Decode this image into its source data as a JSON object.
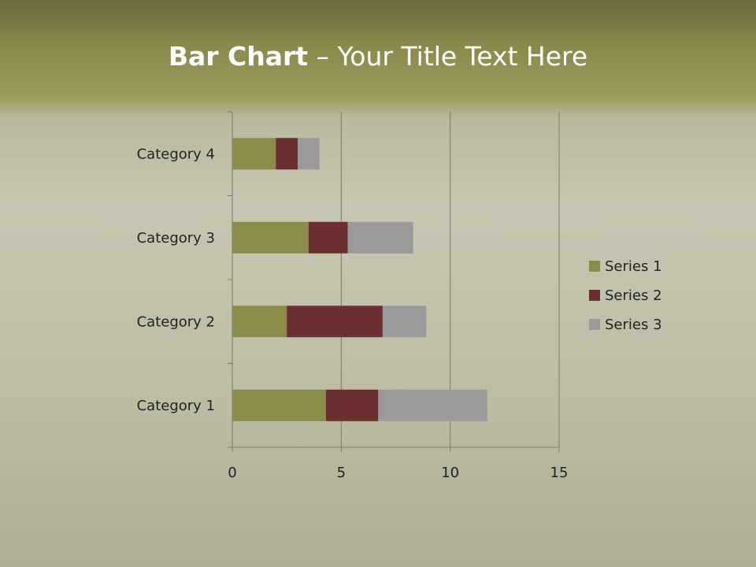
{
  "title": {
    "bold": "Bar Chart",
    "rest": " – Your Title Text Here"
  },
  "chart_data": {
    "type": "bar",
    "orientation": "horizontal",
    "stacked": true,
    "categories": [
      "Category 1",
      "Category 2",
      "Category 3",
      "Category 4"
    ],
    "series": [
      {
        "name": "Series 1",
        "values": [
          4.3,
          2.5,
          3.5,
          2
        ],
        "color": "#8b8b4a"
      },
      {
        "name": "Series 2",
        "values": [
          2.4,
          4.4,
          1.8,
          1
        ],
        "color": "#6b2f2f"
      },
      {
        "name": "Series 3",
        "values": [
          5,
          2,
          3,
          1
        ],
        "color": "#9a9a9a"
      }
    ],
    "xlim": [
      0,
      15
    ],
    "xticks": [
      0,
      5,
      10,
      15
    ],
    "grid": true,
    "legend": "right"
  }
}
